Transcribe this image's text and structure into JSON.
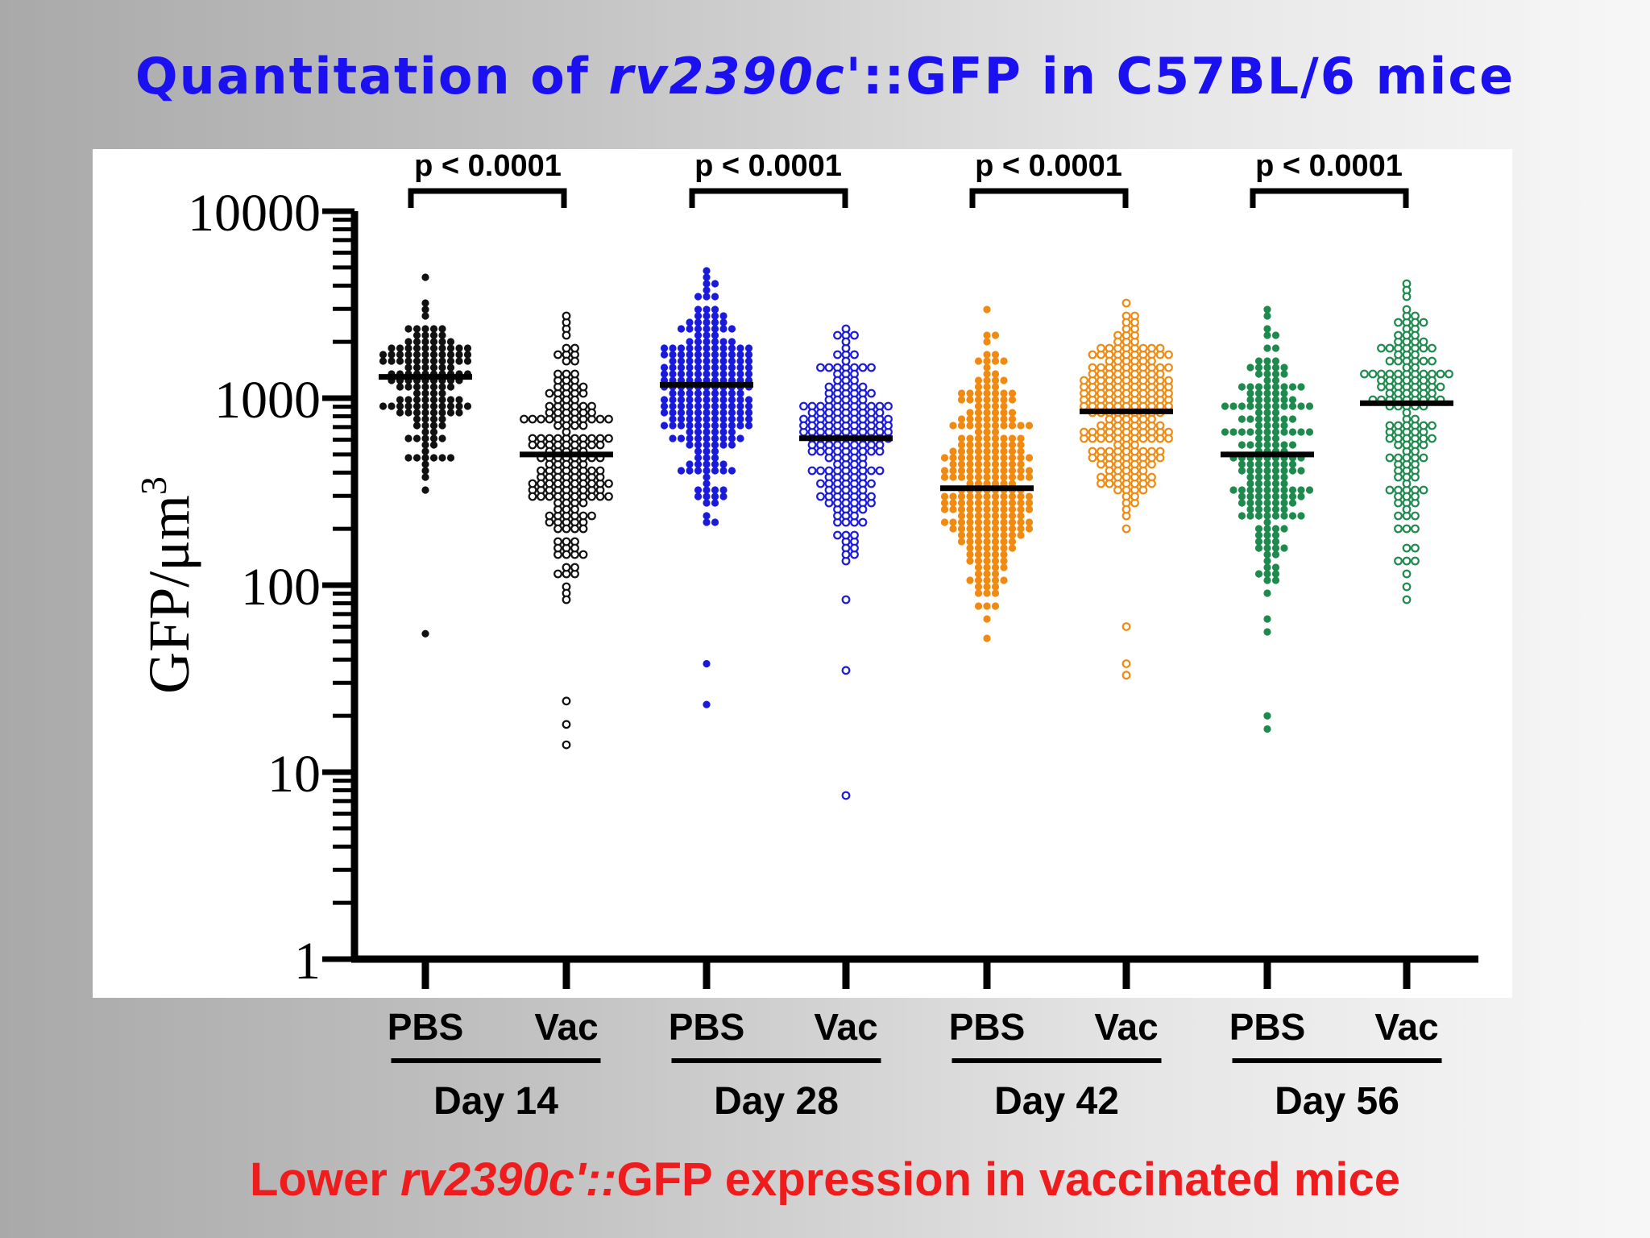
{
  "title": {
    "prefix": "Quantitation of ",
    "gene": "rv2390c'",
    "suffix": "::GFP in C57BL/6 mice"
  },
  "conclusion": {
    "prefix": "Lower ",
    "gene": "rv2390c'::",
    "suffix": "GFP expression in vaccinated mice"
  },
  "colors": {
    "title": "#1a10f0",
    "conclusion": "#ee1c1c",
    "d14": "#111111",
    "d28": "#1a1adc",
    "d42": "#f08a10",
    "d56": "#1e8a4e"
  },
  "chart_data": {
    "type": "scatter",
    "ylabel": "GFP/μm3",
    "yscale": "log",
    "ylim": [
      1,
      10000
    ],
    "yticks": [
      "1",
      "10",
      "100",
      "1000",
      "10000"
    ],
    "groups": [
      {
        "day": "Day 14",
        "color": "#111111",
        "pvalue": "p < 0.0001",
        "series": [
          {
            "name": "PBS",
            "filled": true,
            "median": 1300,
            "min": 160,
            "max": 5000,
            "n": 150,
            "outliers": [
              55
            ]
          },
          {
            "name": "Vac",
            "filled": false,
            "median": 500,
            "min": 35,
            "max": 4600,
            "n": 180,
            "outliers": [
              24,
              18,
              14
            ]
          }
        ]
      },
      {
        "day": "Day 28",
        "color": "#1a1adc",
        "pvalue": "p < 0.0001",
        "series": [
          {
            "name": "PBS",
            "filled": true,
            "median": 1180,
            "min": 80,
            "max": 8000,
            "n": 260,
            "outliers": [
              38,
              23
            ]
          },
          {
            "name": "Vac",
            "filled": false,
            "median": 610,
            "min": 40,
            "max": 5800,
            "n": 200,
            "outliers": [
              35,
              7.5
            ]
          }
        ]
      },
      {
        "day": "Day 42",
        "color": "#f08a10",
        "pvalue": "p < 0.0001",
        "series": [
          {
            "name": "PBS",
            "filled": true,
            "median": 330,
            "min": 22,
            "max": 6500,
            "n": 280,
            "outliers": []
          },
          {
            "name": "Vac",
            "filled": false,
            "median": 850,
            "min": 90,
            "max": 6200,
            "n": 240,
            "outliers": [
              60,
              38,
              33
            ]
          }
        ]
      },
      {
        "day": "Day 56",
        "color": "#1e8a4e",
        "pvalue": "p < 0.0001",
        "series": [
          {
            "name": "PBS",
            "filled": true,
            "median": 500,
            "min": 25,
            "max": 5900,
            "n": 190,
            "outliers": [
              20,
              17
            ]
          },
          {
            "name": "Vac",
            "filled": false,
            "median": 940,
            "min": 35,
            "max": 7900,
            "n": 150,
            "outliers": []
          }
        ]
      }
    ]
  }
}
